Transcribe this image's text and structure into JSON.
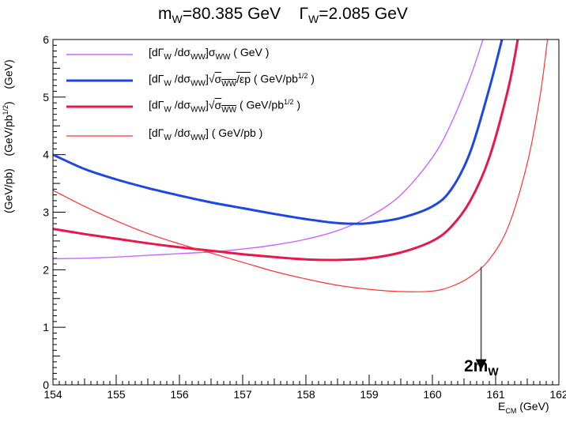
{
  "chart_data": {
    "type": "line",
    "title_parts": {
      "m": "m",
      "m_sub": "W",
      "m_val": "=80.385 GeV",
      "gamma": "Γ",
      "gamma_sub": "W",
      "gamma_val": "=2.085 GeV"
    },
    "xlabel": "E",
    "xlabel_sub": "CM",
    "xlabel_unit": "(GeV)",
    "ylabel_parts": [
      "(GeV/pb)",
      "(GeV/pb",
      "1/2",
      ")",
      "(GeV)"
    ],
    "xlim": [
      154,
      162
    ],
    "ylim": [
      0,
      6
    ],
    "x_ticks": [
      "154",
      "155",
      "156",
      "157",
      "158",
      "159",
      "160",
      "161",
      "162"
    ],
    "y_ticks": [
      "0",
      "1",
      "2",
      "3",
      "4",
      "5",
      "6"
    ],
    "series": [
      {
        "name": "[dΓW/dσWW]σWW (GeV)",
        "color": "#cc66ff",
        "width": 1.4,
        "x": [
          154.0,
          154.5,
          155.0,
          155.5,
          156.0,
          156.5,
          157.0,
          157.5,
          158.0,
          158.5,
          159.0,
          159.5,
          160.0,
          160.3,
          160.6,
          160.8
        ],
        "y": [
          2.19,
          2.2,
          2.22,
          2.25,
          2.28,
          2.31,
          2.36,
          2.43,
          2.53,
          2.68,
          2.92,
          3.3,
          3.95,
          4.55,
          5.35,
          6.0
        ]
      },
      {
        "name": "[dΓW/dσWW]√(σWW/εp) (GeV/pb^1/2)",
        "color": "#1a47e6",
        "width": 3,
        "x": [
          154.0,
          154.5,
          155.0,
          155.5,
          156.0,
          156.5,
          157.0,
          157.5,
          158.0,
          158.5,
          158.8,
          159.0,
          159.5,
          160.0,
          160.3,
          160.6,
          160.9,
          161.1
        ],
        "y": [
          4.0,
          3.75,
          3.57,
          3.42,
          3.29,
          3.17,
          3.07,
          2.97,
          2.88,
          2.81,
          2.8,
          2.81,
          2.9,
          3.1,
          3.4,
          4.05,
          5.15,
          6.0
        ]
      },
      {
        "name": "[dΓW/dσWW]√σWW (GeV/pb^1/2)",
        "color": "#e6194b",
        "width": 3,
        "x": [
          154.0,
          154.5,
          155.0,
          155.5,
          156.0,
          156.5,
          157.0,
          157.5,
          158.0,
          158.5,
          159.0,
          159.5,
          160.0,
          160.3,
          160.6,
          160.9,
          161.2,
          161.35
        ],
        "y": [
          2.71,
          2.62,
          2.54,
          2.46,
          2.39,
          2.33,
          2.27,
          2.22,
          2.18,
          2.17,
          2.2,
          2.3,
          2.5,
          2.75,
          3.2,
          3.95,
          5.15,
          6.0
        ]
      },
      {
        "name": "[dΓW/dσWW] (GeV/pb)",
        "color": "#ff3333",
        "width": 1.2,
        "x": [
          154.0,
          154.5,
          155.0,
          155.5,
          156.0,
          156.5,
          157.0,
          157.5,
          158.0,
          158.5,
          159.0,
          159.5,
          160.0,
          160.3,
          160.6,
          160.9,
          161.2,
          161.5,
          161.7,
          161.82
        ],
        "y": [
          3.38,
          3.1,
          2.85,
          2.63,
          2.45,
          2.29,
          2.13,
          1.97,
          1.84,
          1.73,
          1.66,
          1.62,
          1.63,
          1.71,
          1.88,
          2.18,
          2.75,
          3.85,
          5.0,
          6.0
        ]
      }
    ],
    "annotation": {
      "text": "2m",
      "sub": "W",
      "x": 160.77,
      "y_from": 2.05,
      "y_to": 0.28
    },
    "legend": [
      {
        "prefix": "[dΓ",
        "s1": "W",
        "mid": " /dσ",
        "s2": "WW",
        "after": "]σ",
        "s3": "WW",
        "unit": "( GeV )",
        "sqrt": "",
        "sqrt_sub": "",
        "sqrt_tail": "",
        "unit_sup": "",
        "unit_tail": ""
      },
      {
        "prefix": "[dΓ",
        "s1": "W",
        "mid": " /dσ",
        "s2": "WW",
        "after": "]√",
        "s3": "",
        "sqrt": "σ",
        "sqrt_sub": "WW",
        "sqrt_tail": "/εp",
        "unit": "( GeV/pb",
        "unit_sup": "1/2",
        "unit_tail": " )"
      },
      {
        "prefix": "[dΓ",
        "s1": "W",
        "mid": " /dσ",
        "s2": "WW",
        "after": "]√",
        "s3": "",
        "sqrt": "σ",
        "sqrt_sub": "WW",
        "sqrt_tail": "",
        "unit": "( GeV/pb",
        "unit_sup": "1/2",
        "unit_tail": " )"
      },
      {
        "prefix": "[dΓ",
        "s1": "W",
        "mid": " /dσ",
        "s2": "WW",
        "after": "]",
        "s3": "",
        "sqrt": "",
        "sqrt_sub": "",
        "sqrt_tail": "",
        "unit": "( GeV/pb )",
        "unit_sup": "",
        "unit_tail": ""
      }
    ]
  }
}
